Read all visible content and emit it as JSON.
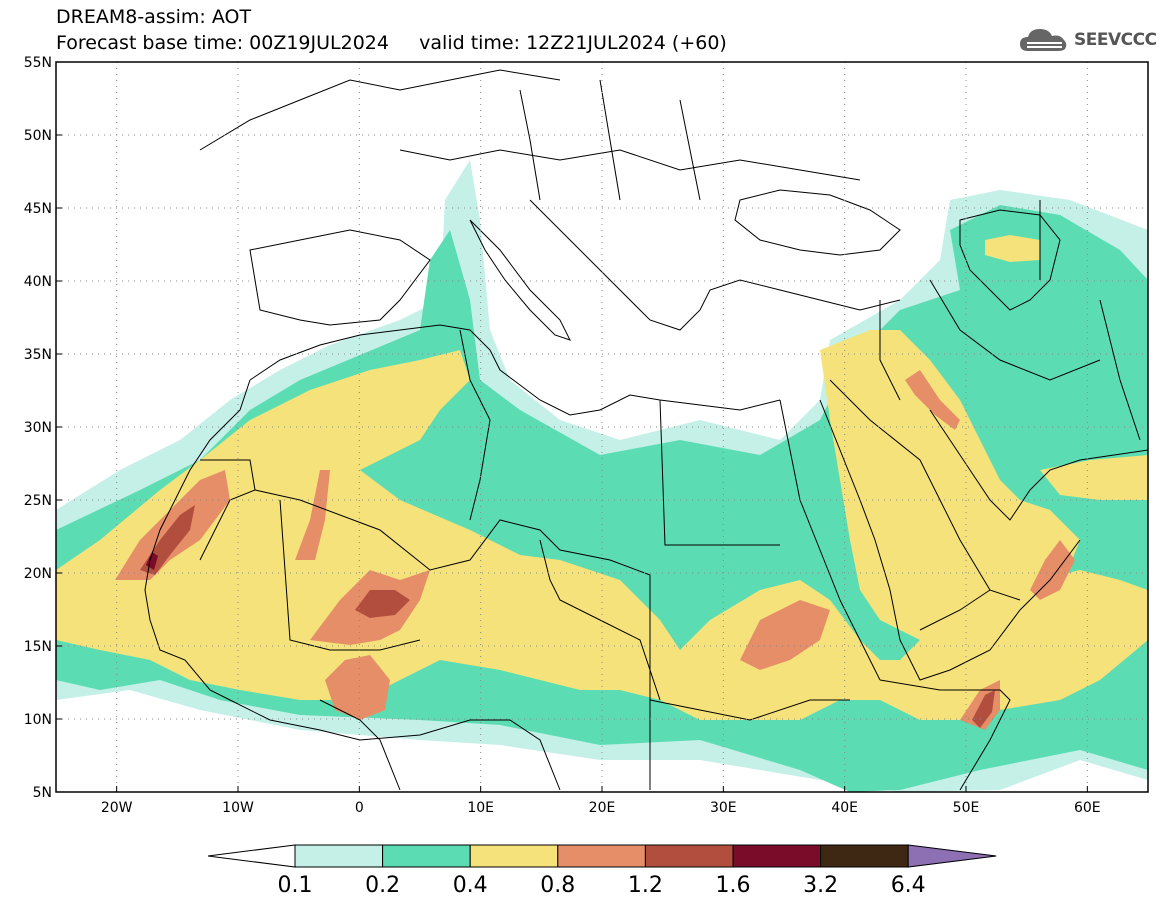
{
  "header": {
    "title": "DREAM8-assim: AOT",
    "subtitle": "Forecast base time: 00Z19JUL2024     valid time: 12Z21JUL2024 (+60)"
  },
  "logo": {
    "text": "SEEVCCC"
  },
  "map": {
    "lat_labels": [
      "55N",
      "50N",
      "45N",
      "40N",
      "35N",
      "30N",
      "25N",
      "20N",
      "15N",
      "10N",
      "5N"
    ],
    "lon_labels": [
      "20W",
      "10W",
      "0",
      "10E",
      "20E",
      "30E",
      "40E",
      "50E",
      "60E"
    ],
    "lat_values": [
      55,
      50,
      45,
      40,
      35,
      30,
      25,
      20,
      15,
      10,
      5
    ],
    "lon_values": [
      -20,
      -10,
      0,
      10,
      20,
      30,
      40,
      50,
      60
    ],
    "lon_range": [
      -25,
      65
    ],
    "lat_range": [
      5,
      55
    ]
  },
  "colorbar": {
    "labels": [
      "0.1",
      "0.2",
      "0.4",
      "0.8",
      "1.2",
      "1.6",
      "3.2",
      "6.4"
    ],
    "colors": [
      "#c4f0e8",
      "#5cdcb2",
      "#f5e27a",
      "#e58e68",
      "#b24e3e",
      "#7a0c2a",
      "#3e2814",
      "#8d6fb4"
    ]
  }
}
